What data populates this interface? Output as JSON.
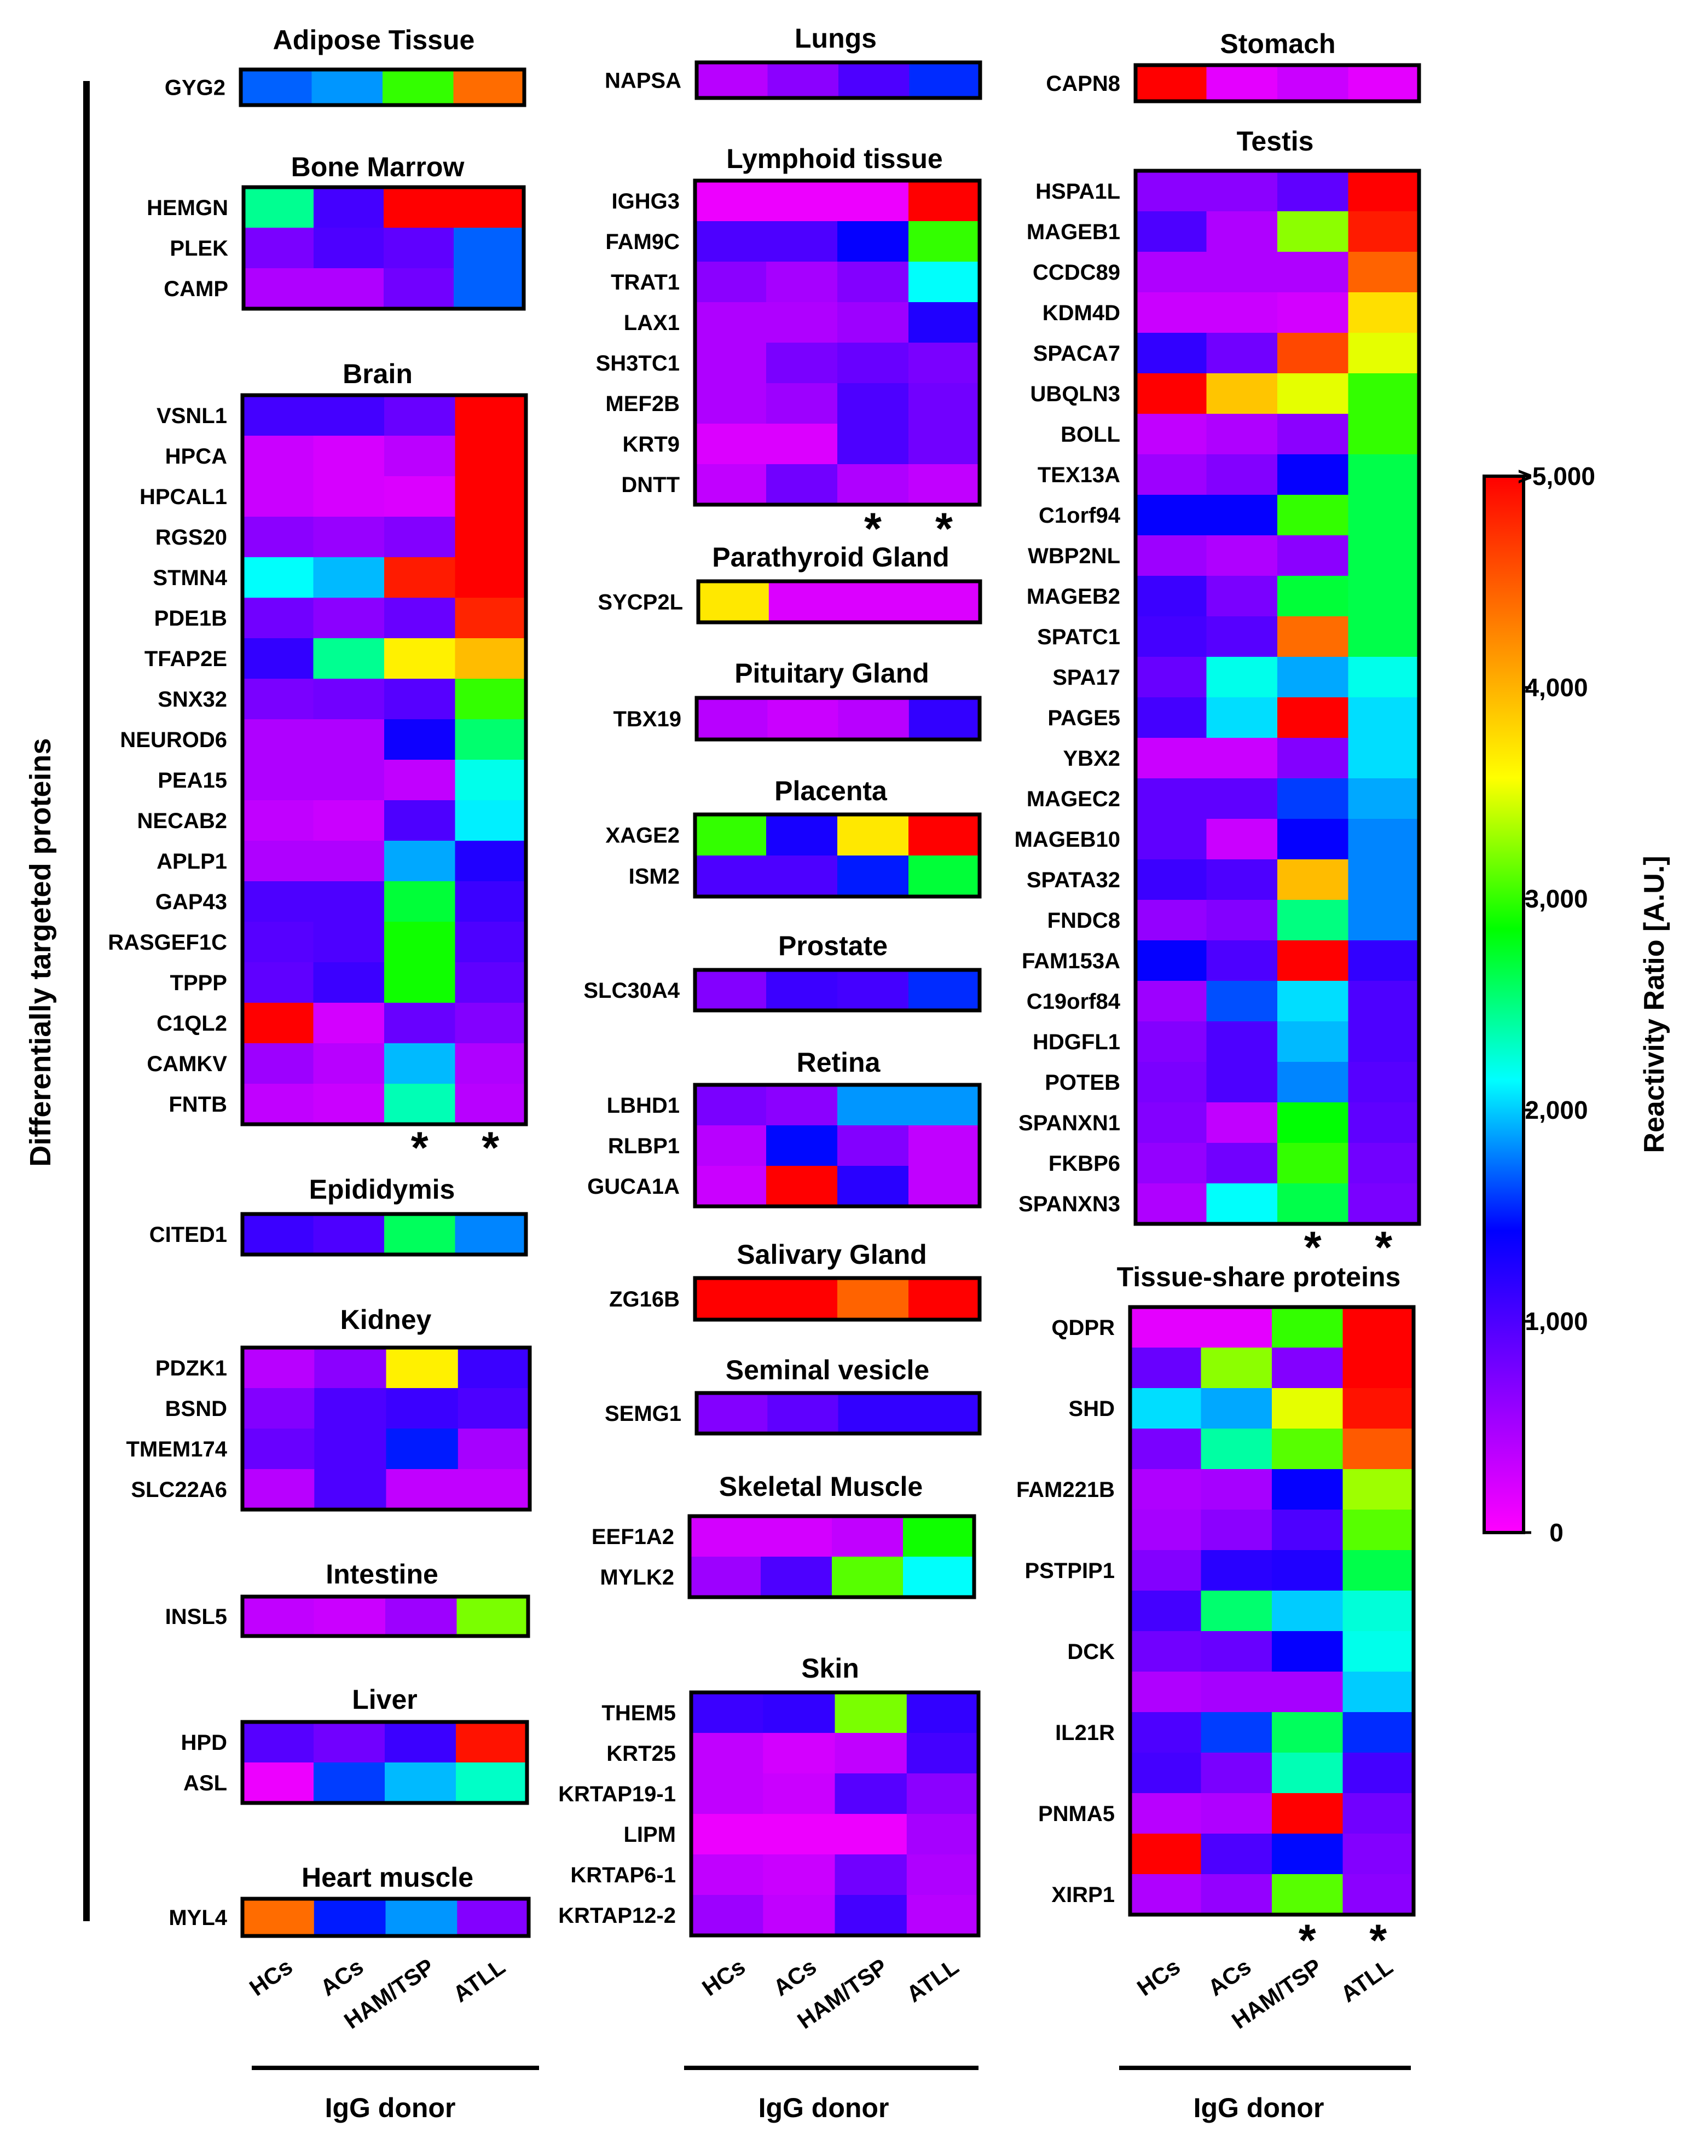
{
  "chart_data": {
    "type": "heatmap",
    "y_axis_label": "Differentially targeted proteins",
    "column_labels": [
      "HCs",
      "ACs",
      "HAM/TSP",
      "ATLL"
    ],
    "column_group_label": "IgG donor",
    "significance_marker": "*",
    "colorbar": {
      "label": "Reactivity Ratio [A.U.]",
      "ticks": [
        "0",
        "1,000",
        "2,000",
        "3,000",
        "4,000",
        ">5,000"
      ],
      "tick_values": [
        0,
        1000,
        2000,
        3000,
        4000,
        5000
      ],
      "range": [
        0,
        5000
      ],
      "colors": [
        "#ff00ff",
        "#8000ff",
        "#0000ff",
        "#00ffff",
        "#00ff00",
        "#ffff00",
        "#ff8000",
        "#ff0000"
      ]
    },
    "panels": [
      {
        "tissue": "Adipose Tissue",
        "rows": [
          {
            "gene": "GYG2",
            "values": [
              1700,
              1850,
              3000,
              4400
            ]
          }
        ]
      },
      {
        "tissue": "Bone Marrow",
        "rows": [
          {
            "gene": "HEMGN",
            "values": [
              2450,
              1050,
              5000,
              5000
            ]
          },
          {
            "gene": "PLEK",
            "values": [
              750,
              1000,
              900,
              1700
            ]
          },
          {
            "gene": "CAMP",
            "values": [
              450,
              450,
              800,
              1700
            ]
          }
        ]
      },
      {
        "tissue": "Brain",
        "significant": [
          false,
          false,
          true,
          true
        ],
        "rows": [
          {
            "gene": "VSNL1",
            "values": [
              1050,
              1050,
              850,
              5000
            ]
          },
          {
            "gene": "HPCA",
            "values": [
              300,
              230,
              380,
              5000
            ]
          },
          {
            "gene": "HPCAL1",
            "values": [
              300,
              230,
              200,
              5000
            ]
          },
          {
            "gene": "RGS20",
            "values": [
              650,
              580,
              700,
              5000
            ]
          },
          {
            "gene": "STMN4",
            "values": [
              2150,
              1950,
              4850,
              5000
            ]
          },
          {
            "gene": "PDE1B",
            "values": [
              800,
              650,
              850,
              4800
            ]
          },
          {
            "gene": "TFAP2E",
            "values": [
              1150,
              2450,
              3650,
              3950
            ]
          },
          {
            "gene": "SNX32",
            "values": [
              750,
              800,
              950,
              3000
            ]
          },
          {
            "gene": "NEUROD6",
            "values": [
              450,
              450,
              1350,
              2550
            ]
          },
          {
            "gene": "PEA15",
            "values": [
              450,
              450,
              350,
              2200
            ]
          },
          {
            "gene": "NECAB2",
            "values": [
              350,
              300,
              1000,
              2100
            ]
          },
          {
            "gene": "APLP1",
            "values": [
              450,
              450,
              1900,
              1250
            ]
          },
          {
            "gene": "GAP43",
            "values": [
              1000,
              1000,
              2700,
              1100
            ]
          },
          {
            "gene": "RASGEF1C",
            "values": [
              950,
              1000,
              2900,
              1000
            ]
          },
          {
            "gene": "TPPP",
            "values": [
              900,
              1100,
              2900,
              900
            ]
          },
          {
            "gene": "C1QL2",
            "values": [
              5000,
              250,
              850,
              700
            ]
          },
          {
            "gene": "CAMKV",
            "values": [
              550,
              400,
              1950,
              450
            ]
          },
          {
            "gene": "FNTB",
            "values": [
              350,
              300,
              2350,
              400
            ]
          }
        ]
      },
      {
        "tissue": "Epididymis",
        "rows": [
          {
            "gene": "CITED1",
            "values": [
              1100,
              1000,
              2600,
              1800
            ]
          }
        ]
      },
      {
        "tissue": "Kidney",
        "rows": [
          {
            "gene": "PDZK1",
            "values": [
              400,
              650,
              3650,
              1100
            ]
          },
          {
            "gene": "BSND",
            "values": [
              700,
              1000,
              1100,
              1000
            ]
          },
          {
            "gene": "TMEM174",
            "values": [
              850,
              1000,
              1500,
              500
            ]
          },
          {
            "gene": "SLC22A6",
            "values": [
              400,
              1000,
              350,
              350
            ]
          }
        ]
      },
      {
        "tissue": "Intestine",
        "rows": [
          {
            "gene": "INSL5",
            "values": [
              350,
              300,
              550,
              3200
            ]
          }
        ]
      },
      {
        "tissue": "Liver",
        "rows": [
          {
            "gene": "HPD",
            "values": [
              950,
              800,
              1100,
              4900
            ]
          },
          {
            "gene": "ASL",
            "values": [
              100,
              1600,
              1950,
              2300
            ]
          }
        ]
      },
      {
        "tissue": "Heart muscle",
        "rows": [
          {
            "gene": "MYL4",
            "values": [
              4400,
              1500,
              1850,
              700
            ]
          }
        ]
      },
      {
        "tissue": "Lungs",
        "rows": [
          {
            "gene": "NAPSA",
            "values": [
              400,
              650,
              1000,
              1550
            ]
          }
        ]
      },
      {
        "tissue": "Lymphoid tissue",
        "significant": [
          false,
          false,
          true,
          true
        ],
        "rows": [
          {
            "gene": "IGHG3",
            "values": [
              100,
              100,
              100,
              5000
            ]
          },
          {
            "gene": "FAM9C",
            "values": [
              1000,
              1000,
              1400,
              3000
            ]
          },
          {
            "gene": "TRAT1",
            "values": [
              650,
              500,
              700,
              2150
            ]
          },
          {
            "gene": "LAX1",
            "values": [
              450,
              450,
              550,
              1250
            ]
          },
          {
            "gene": "SH3TC1",
            "values": [
              450,
              750,
              850,
              750
            ]
          },
          {
            "gene": "MEF2B",
            "values": [
              450,
              550,
              1000,
              800
            ]
          },
          {
            "gene": "KRT9",
            "values": [
              200,
              200,
              1000,
              800
            ]
          },
          {
            "gene": "DNTT",
            "values": [
              350,
              800,
              450,
              350
            ]
          }
        ]
      },
      {
        "tissue": "Parathyroid Gland",
        "rows": [
          {
            "gene": "SYCP2L",
            "values": [
              3700,
              200,
              200,
              200
            ]
          }
        ]
      },
      {
        "tissue": "Pituitary Gland",
        "rows": [
          {
            "gene": "TBX19",
            "values": [
              400,
              300,
              400,
              1150
            ]
          }
        ]
      },
      {
        "tissue": "Placenta",
        "rows": [
          {
            "gene": "XAGE2",
            "values": [
              3000,
              1300,
              3700,
              5000
            ]
          },
          {
            "gene": "ISM2",
            "values": [
              1000,
              1000,
              1500,
              2700
            ]
          }
        ]
      },
      {
        "tissue": "Prostate",
        "rows": [
          {
            "gene": "SLC30A4",
            "values": [
              700,
              1100,
              1050,
              1550
            ]
          }
        ]
      },
      {
        "tissue": "Retina",
        "rows": [
          {
            "gene": "LBHD1",
            "values": [
              750,
              650,
              1850,
              1850
            ]
          },
          {
            "gene": "RLBP1",
            "values": [
              400,
              1450,
              700,
              350
            ]
          },
          {
            "gene": "GUCA1A",
            "values": [
              300,
              5000,
              1200,
              350
            ]
          }
        ]
      },
      {
        "tissue": "Salivary Gland",
        "rows": [
          {
            "gene": "ZG16B",
            "values": [
              5000,
              5000,
              4450,
              5000
            ]
          }
        ]
      },
      {
        "tissue": "Seminal vesicle",
        "rows": [
          {
            "gene": "SEMG1",
            "values": [
              700,
              900,
              1150,
              1150
            ]
          }
        ]
      },
      {
        "tissue": "Skeletal Muscle",
        "rows": [
          {
            "gene": "EEF1A2",
            "values": [
              250,
              250,
              350,
              2900
            ]
          },
          {
            "gene": "MYLK2",
            "values": [
              550,
              1000,
              3100,
              2150
            ]
          }
        ]
      },
      {
        "tissue": "Skin",
        "rows": [
          {
            "gene": "THEM5",
            "values": [
              1100,
              1150,
              3200,
              1150
            ]
          },
          {
            "gene": "KRT25",
            "values": [
              350,
              250,
              350,
              1050
            ]
          },
          {
            "gene": "KRTAP19-1",
            "values": [
              350,
              300,
              950,
              650
            ]
          },
          {
            "gene": "LIPM",
            "values": [
              100,
              100,
              100,
              500
            ]
          },
          {
            "gene": "KRTAP6-1",
            "values": [
              350,
              300,
              800,
              450
            ]
          },
          {
            "gene": "KRTAP12-2",
            "values": [
              550,
              350,
              1050,
              400
            ]
          }
        ]
      },
      {
        "tissue": "Stomach",
        "rows": [
          {
            "gene": "CAPN8",
            "values": [
              5000,
              150,
              300,
              150
            ]
          }
        ]
      },
      {
        "tissue": "Testis",
        "significant": [
          false,
          false,
          true,
          true
        ],
        "rows": [
          {
            "gene": "HSPA1L",
            "values": [
              650,
              650,
              900,
              5000
            ]
          },
          {
            "gene": "MAGEB1",
            "values": [
              1000,
              450,
              3250,
              4850
            ]
          },
          {
            "gene": "CCDC89",
            "values": [
              450,
              450,
              450,
              4450
            ]
          },
          {
            "gene": "KDM4D",
            "values": [
              300,
              300,
              250,
              3750
            ]
          },
          {
            "gene": "SPACA7",
            "values": [
              1150,
              800,
              4600,
              3500
            ]
          },
          {
            "gene": "UBQLN3",
            "values": [
              5000,
              3900,
              3500,
              3000
            ]
          },
          {
            "gene": "BOLL",
            "values": [
              350,
              450,
              650,
              3000
            ]
          },
          {
            "gene": "TEX13A",
            "values": [
              550,
              700,
              1400,
              2650
            ]
          },
          {
            "gene": "C1orf94",
            "values": [
              1400,
              1400,
              3000,
              2650
            ]
          },
          {
            "gene": "WBP2NL",
            "values": [
              550,
              450,
              650,
              2650
            ]
          },
          {
            "gene": "MAGEB2",
            "values": [
              1100,
              750,
              2700,
              2650
            ]
          },
          {
            "gene": "SPATC1",
            "values": [
              1050,
              950,
              4400,
              2650
            ]
          },
          {
            "gene": "SPA17",
            "values": [
              850,
              2200,
              1900,
              2200
            ]
          },
          {
            "gene": "PAGE5",
            "values": [
              1050,
              2050,
              5000,
              2050
            ]
          },
          {
            "gene": "YBX2",
            "values": [
              300,
              300,
              700,
              2050
            ]
          },
          {
            "gene": "MAGEC2",
            "values": [
              900,
              900,
              1600,
              1900
            ]
          },
          {
            "gene": "MAGEB10",
            "values": [
              900,
              300,
              1400,
              1800
            ]
          },
          {
            "gene": "SPATA32",
            "values": [
              1100,
              1000,
              3950,
              1800
            ]
          },
          {
            "gene": "FNDC8",
            "values": [
              600,
              700,
              2500,
              1800
            ]
          },
          {
            "gene": "FAM153A",
            "values": [
              1400,
              1000,
              5000,
              1150
            ]
          },
          {
            "gene": "C19orf84",
            "values": [
              550,
              1650,
              2050,
              1000
            ]
          },
          {
            "gene": "HDGFL1",
            "values": [
              700,
              1000,
              1950,
              1000
            ]
          },
          {
            "gene": "POTEB",
            "values": [
              750,
              1000,
              1800,
              950
            ]
          },
          {
            "gene": "SPANXN1",
            "values": [
              700,
              350,
              2850,
              900
            ]
          },
          {
            "gene": "FKBP6",
            "values": [
              600,
              800,
              3000,
              800
            ]
          },
          {
            "gene": "SPANXN3",
            "values": [
              450,
              2150,
              2650,
              750
            ]
          }
        ]
      },
      {
        "tissue": "Tissue-share proteins",
        "significant": [
          false,
          false,
          true,
          true
        ],
        "rows": [
          {
            "gene": "QDPR",
            "values": [
              150,
              150,
              3000,
              5000
            ]
          },
          {
            "gene": "",
            "values": [
              850,
              3250,
              700,
              5000
            ]
          },
          {
            "gene": "SHD",
            "values": [
              2050,
              1900,
              3500,
              4900
            ]
          },
          {
            "gene": "",
            "values": [
              750,
              2400,
              3100,
              4500
            ]
          },
          {
            "gene": "FAM221B",
            "values": [
              450,
              500,
              1400,
              3300
            ]
          },
          {
            "gene": "",
            "values": [
              500,
              650,
              1000,
              3100
            ]
          },
          {
            "gene": "PSTPIP1",
            "values": [
              700,
              1200,
              1250,
              2650
            ]
          },
          {
            "gene": "",
            "values": [
              1050,
              2550,
              2000,
              2250
            ]
          },
          {
            "gene": "DCK",
            "values": [
              800,
              850,
              1400,
              2200
            ]
          },
          {
            "gene": "",
            "values": [
              450,
              500,
              500,
              2000
            ]
          },
          {
            "gene": "IL21R",
            "values": [
              1000,
              1600,
              2600,
              1550
            ]
          },
          {
            "gene": "",
            "values": [
              1050,
              750,
              2350,
              1050
            ]
          },
          {
            "gene": "PNMA5",
            "values": [
              400,
              450,
              5000,
              800
            ]
          },
          {
            "gene": "",
            "values": [
              5000,
              1000,
              1450,
              700
            ]
          },
          {
            "gene": "XIRP1",
            "values": [
              450,
              600,
              3100,
              650
            ]
          }
        ]
      }
    ]
  }
}
